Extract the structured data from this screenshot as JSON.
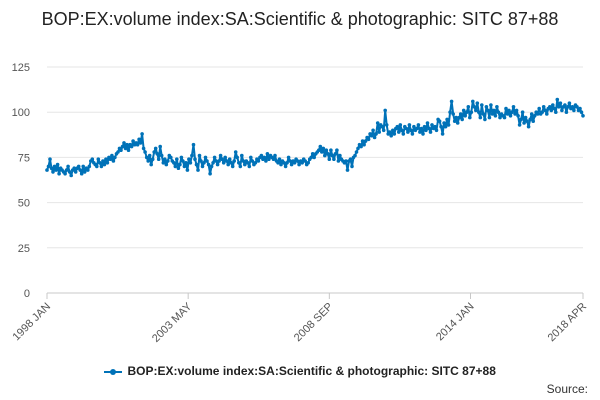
{
  "chart_data": {
    "type": "line",
    "title": "BOP:EX:volume index:SA:Scientific & photographic: SITC 87+88",
    "xlabel": "",
    "ylabel": "",
    "x_start": "1998 JAN",
    "x_end": "2018 APR",
    "x_tick_labels": [
      "1998 JAN",
      "2003 MAY",
      "2008 SEP",
      "2014 JAN",
      "2018 APR"
    ],
    "ylim": [
      0,
      125
    ],
    "y_ticks": [
      0,
      25,
      50,
      75,
      100,
      125
    ],
    "grid": true,
    "legend_position": "bottom",
    "series_color": "#0072b8",
    "series": [
      {
        "name": "BOP:EX:volume index:SA:Scientific & photographic: SITC 87+88",
        "frequency": "monthly",
        "values": [
          68,
          70,
          74,
          69,
          67,
          70,
          68,
          71,
          66,
          69,
          68,
          67,
          66,
          68,
          70,
          67,
          65,
          68,
          69,
          67,
          69,
          70,
          68,
          66,
          70,
          67,
          69,
          68,
          70,
          73,
          74,
          72,
          71,
          70,
          74,
          72,
          70,
          73,
          71,
          74,
          72,
          75,
          74,
          76,
          73,
          75,
          77,
          78,
          80,
          79,
          81,
          83,
          80,
          82,
          79,
          82,
          81,
          84,
          82,
          83,
          82,
          85,
          83,
          88,
          80,
          78,
          75,
          73,
          76,
          71,
          74,
          78,
          80,
          77,
          74,
          81,
          76,
          72,
          74,
          71,
          73,
          76,
          75,
          73,
          72,
          70,
          74,
          69,
          71,
          75,
          73,
          70,
          72,
          68,
          74,
          72,
          76,
          82,
          74,
          71,
          68,
          76,
          73,
          70,
          72,
          75,
          73,
          71,
          66,
          70,
          72,
          75,
          73,
          71,
          73,
          76,
          74,
          72,
          75,
          73,
          71,
          74,
          72,
          70,
          73,
          78,
          75,
          72,
          70,
          76,
          73,
          71,
          73,
          72,
          70,
          75,
          73,
          71,
          72,
          74,
          73,
          75,
          76,
          74,
          75,
          73,
          77,
          74,
          76,
          75,
          74,
          76,
          73,
          72,
          74,
          71,
          73,
          72,
          70,
          72,
          75,
          73,
          71,
          73,
          72,
          74,
          73,
          71,
          73,
          72,
          74,
          73,
          71,
          72,
          74,
          75,
          77,
          75,
          77,
          78,
          79,
          81,
          78,
          80,
          76,
          79,
          77,
          74,
          79,
          76,
          74,
          77,
          79,
          73,
          76,
          74,
          73,
          72,
          73,
          68,
          73,
          74,
          70,
          75,
          76,
          78,
          80,
          82,
          81,
          84,
          82,
          84,
          86,
          85,
          88,
          87,
          90,
          86,
          88,
          94,
          89,
          93,
          92,
          90,
          101,
          93,
          88,
          89,
          87,
          90,
          88,
          91,
          92,
          89,
          93,
          90,
          88,
          92,
          91,
          89,
          93,
          90,
          88,
          92,
          90,
          91,
          93,
          89,
          91,
          88,
          92,
          90,
          94,
          91,
          89,
          93,
          91,
          92,
          90,
          96,
          95,
          92,
          88,
          94,
          92,
          96,
          93,
          100,
          106,
          99,
          95,
          97,
          94,
          97,
          99,
          96,
          101,
          98,
          100,
          103,
          97,
          100,
          106,
          103,
          101,
          105,
          100,
          97,
          104,
          99,
          96,
          103,
          101,
          97,
          104,
          99,
          101,
          98,
          103,
          100,
          97,
          99,
          98,
          97,
          102,
          99,
          101,
          98,
          100,
          103,
          99,
          101,
          98,
          93,
          96,
          100,
          94,
          97,
          95,
          92,
          96,
          99,
          95,
          98,
          100,
          99,
          102,
          99,
          100,
          103,
          101,
          99,
          102,
          103,
          101,
          104,
          102,
          100,
          107,
          103,
          105,
          101,
          103,
          104,
          100,
          103,
          105,
          102,
          103,
          101,
          104,
          103,
          101,
          102,
          100,
          98
        ]
      }
    ]
  },
  "source_label": "Source:"
}
